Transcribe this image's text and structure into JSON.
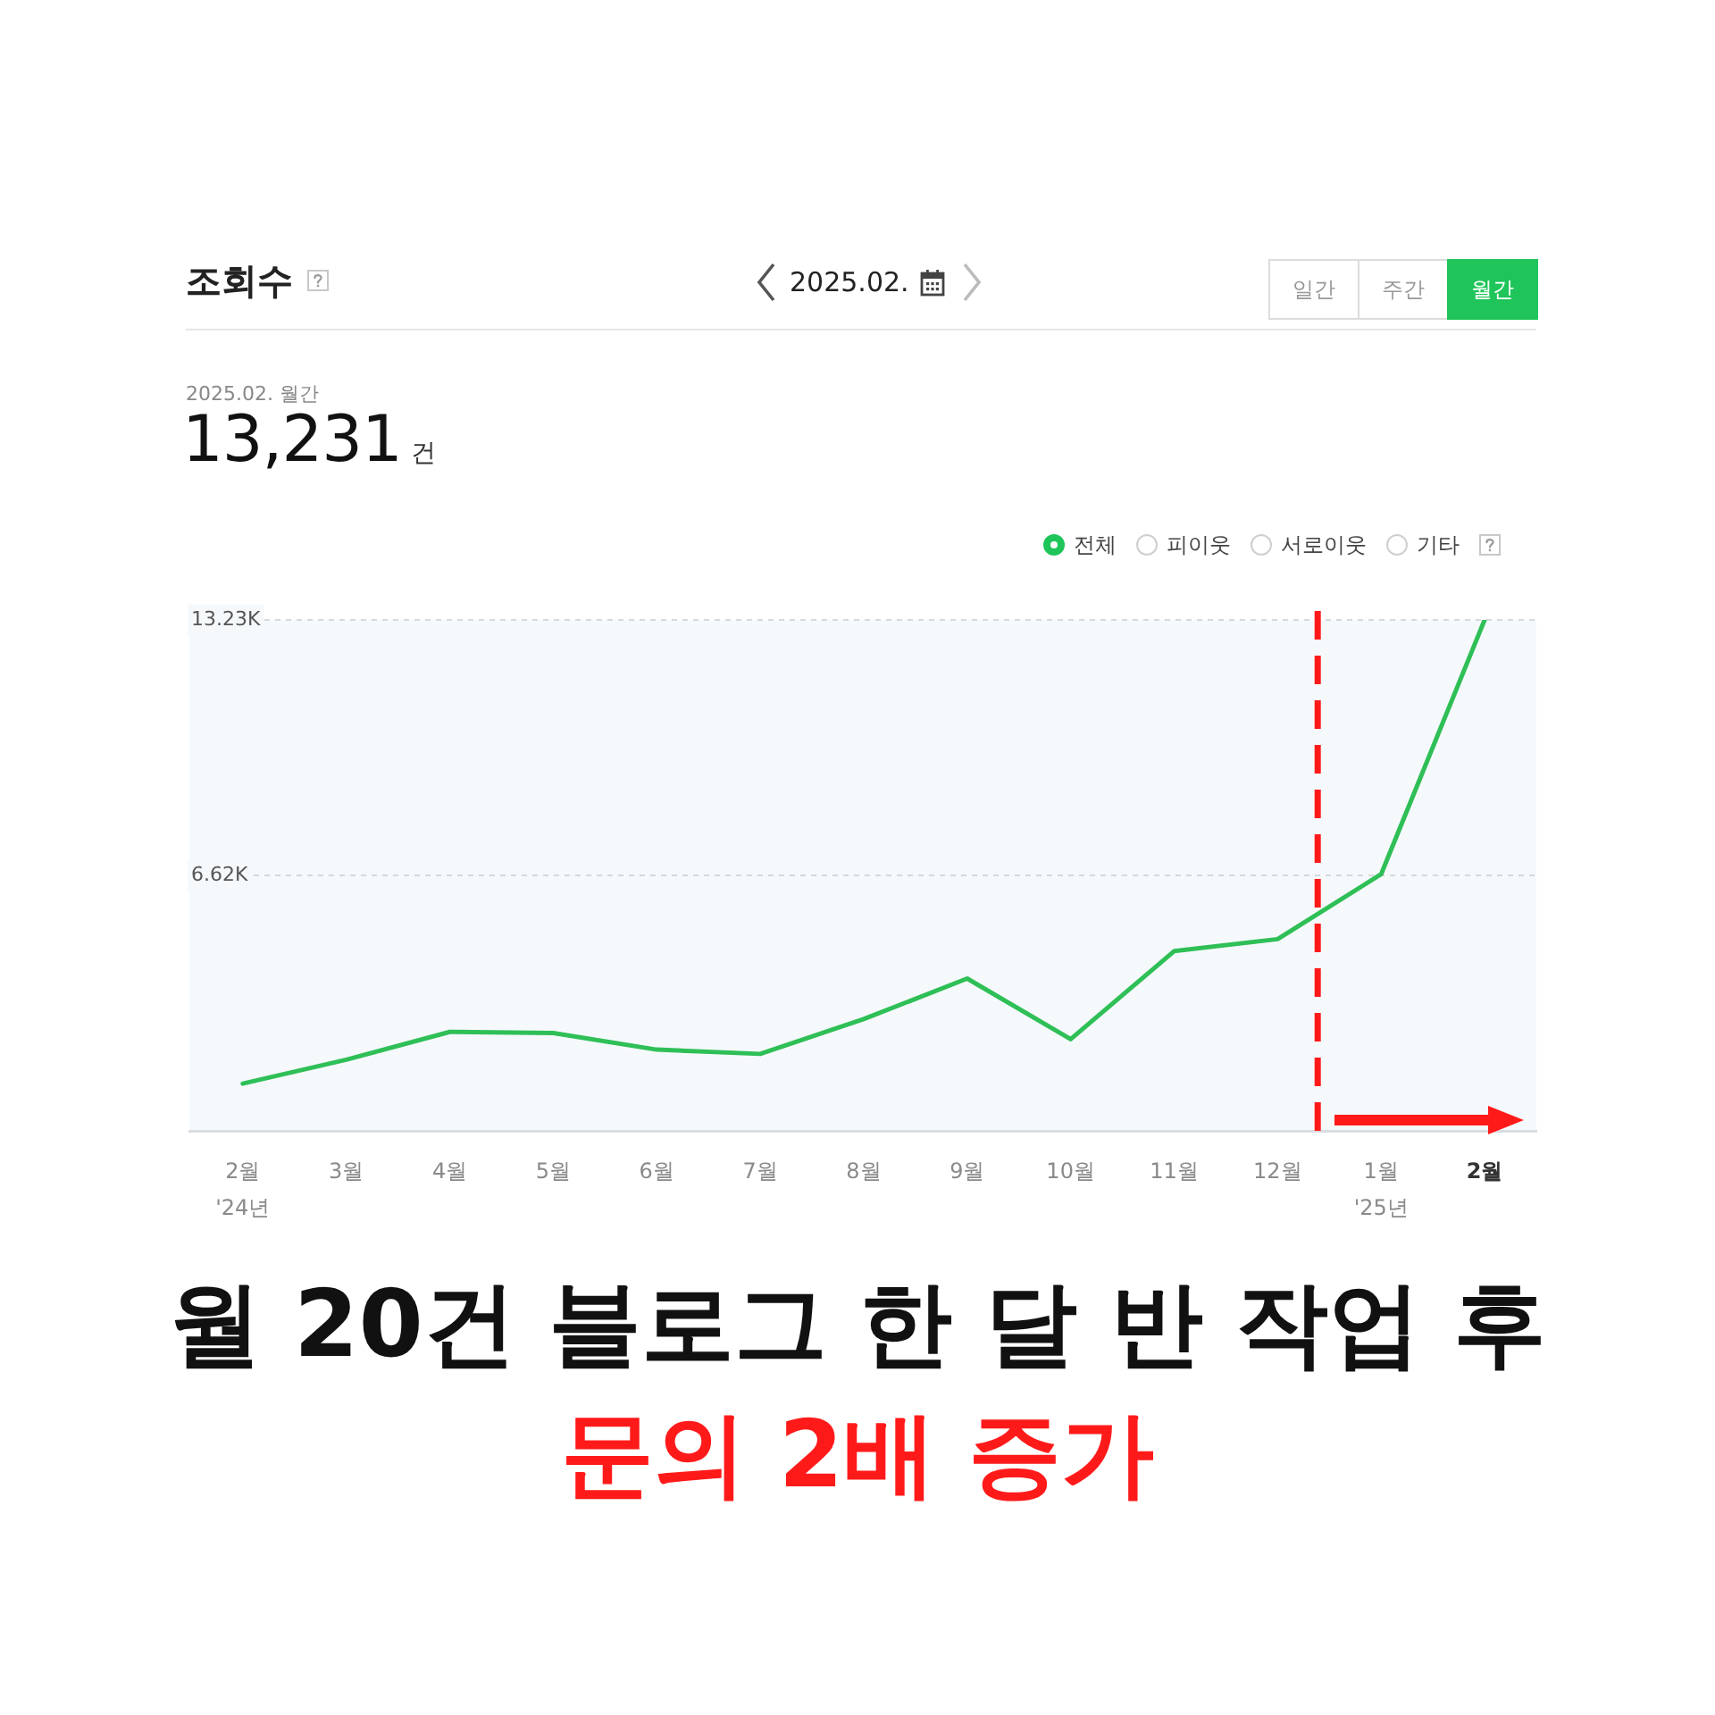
{
  "chart_data": {
    "type": "line",
    "title": "조회수",
    "x": [
      "2024-02",
      "2024-03",
      "2024-04",
      "2024-05",
      "2024-06",
      "2024-07",
      "2024-08",
      "2024-09",
      "2024-10",
      "2024-11",
      "2024-12",
      "2025-01",
      "2025-02"
    ],
    "series": [
      {
        "color": "#2fbf57",
        "values": [
          1230,
          1850,
          2570,
          2540,
          2110,
          2000,
          2900,
          3950,
          2380,
          4660,
          4970,
          6650,
          13231
        ]
      }
    ],
    "xlim": [
      "2024-01-16",
      "2025-02-15"
    ],
    "xticks": [
      {
        "value": "2024-02",
        "label": "2월\n'24년"
      },
      {
        "value": "2024-03",
        "label": "3월"
      },
      {
        "value": "2024-04",
        "label": "4월"
      },
      {
        "value": "2024-05",
        "label": "5월"
      },
      {
        "value": "2024-06",
        "label": "6월"
      },
      {
        "value": "2024-07",
        "label": "7월"
      },
      {
        "value": "2024-08",
        "label": "8월"
      },
      {
        "value": "2024-09",
        "label": "9월"
      },
      {
        "value": "2024-10",
        "label": "10월"
      },
      {
        "value": "2024-11",
        "label": "11월"
      },
      {
        "value": "2024-12",
        "label": "12월"
      },
      {
        "value": "2025-01",
        "label": "1월\n'25년"
      },
      {
        "value": "2025-02",
        "label": "2월"
      }
    ],
    "ylim": [
      0,
      13231
    ],
    "yticks": [
      {
        "value": 6615.5,
        "label": "6.62K"
      },
      {
        "value": 13231,
        "label": "13.23K"
      }
    ],
    "grid": "y",
    "legend": false,
    "marker": "none",
    "line_style": "solid",
    "ref_lines": [
      {
        "axis": "x",
        "value": "2024-12-13",
        "color": "#ff1a1a",
        "line_style": "dashed"
      }
    ],
    "annotations": [
      "2025.02.",
      "일간",
      "주간",
      "월간",
      "2025.02. 월간",
      "13,231",
      "건",
      "전체",
      "피이웃",
      "서로이웃",
      "기타",
      "월 20건 블로그 한 달 반 작업 후",
      "문의 2배 증가"
    ]
  }
}
